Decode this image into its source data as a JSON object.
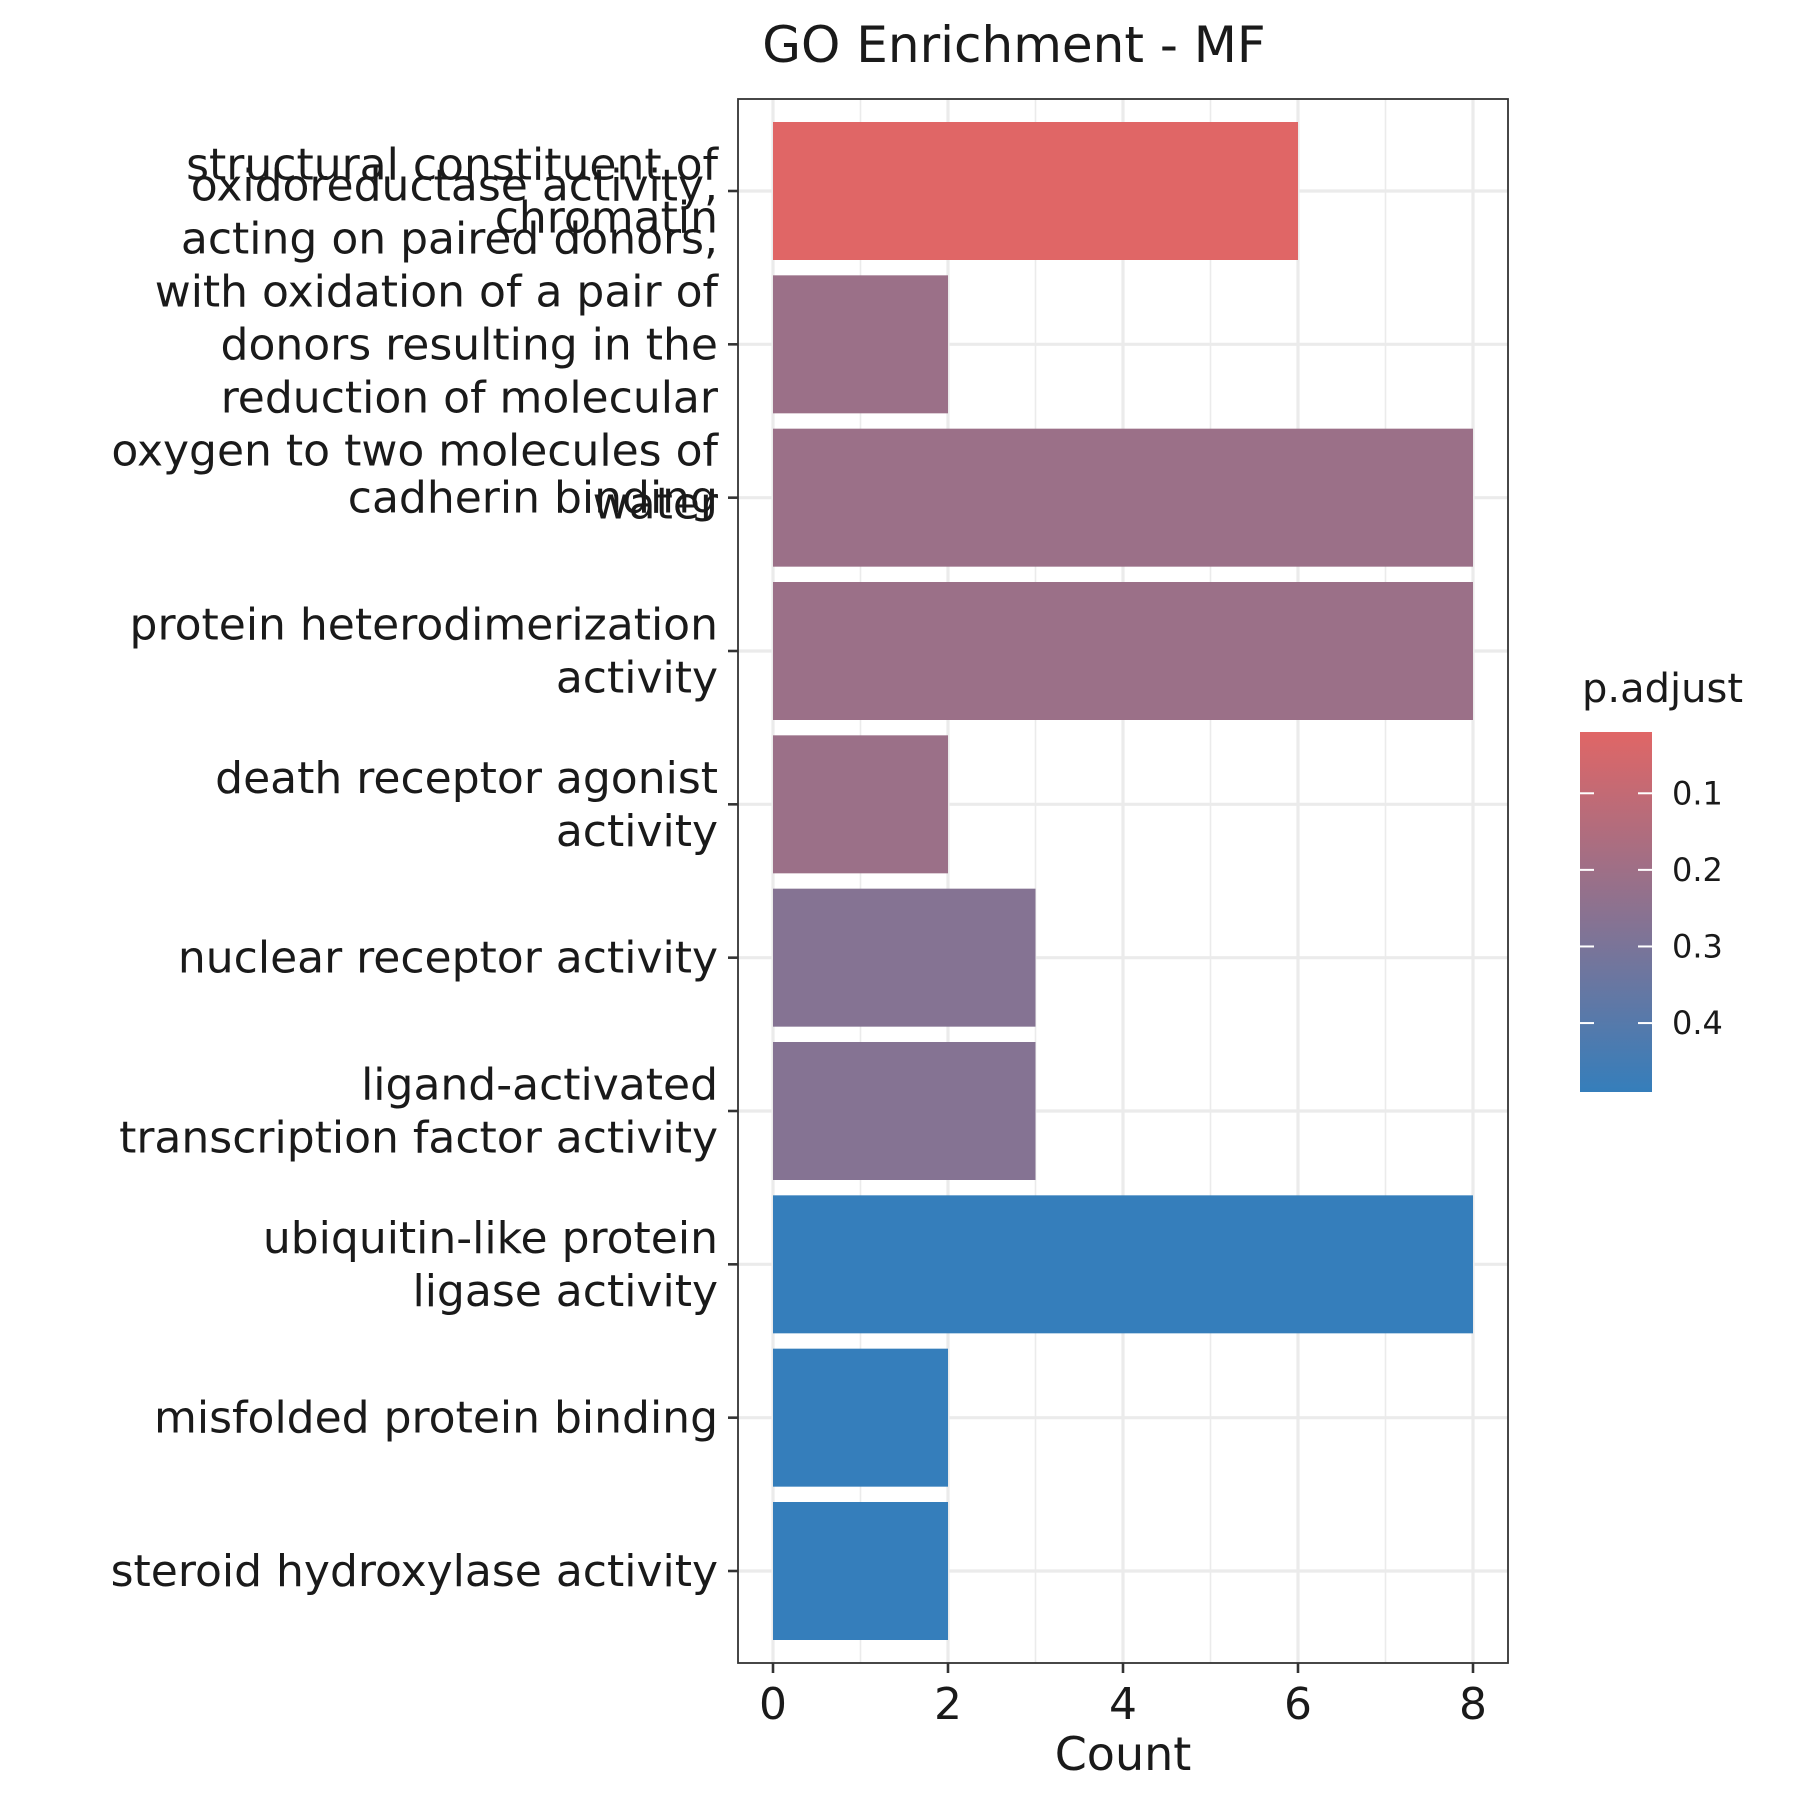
{
  "chart_data": {
    "type": "bar",
    "orientation": "horizontal",
    "title": "GO Enrichment - MF",
    "xlabel": "Count",
    "ylabel": "",
    "xlim": [
      -0.4,
      8.4
    ],
    "x_ticks": [
      0,
      2,
      4,
      6,
      8
    ],
    "grid": true,
    "categories": [
      "structural constituent of chromatin",
      "oxidoreductase activity, acting on paired donors, with oxidation of a pair of donors resulting in the reduction of molecular oxygen to two molecules of water",
      "cadherin binding",
      "protein heterodimerization activity",
      "death receptor agonist activity",
      "nuclear receptor activity",
      "ligand-activated transcription factor activity",
      "ubiquitin-like protein ligase activity",
      "misfolded protein binding",
      "steroid hydroxylase activity"
    ],
    "category_label_lines": [
      [
        "structural constituent of",
        "chromatin"
      ],
      [
        "oxidoreductase activity,",
        "acting on paired donors,",
        "with oxidation of a pair of",
        "donors resulting in the",
        "reduction of molecular",
        "oxygen to two molecules of",
        "water"
      ],
      [
        "cadherin binding"
      ],
      [
        "protein heterodimerization",
        "activity"
      ],
      [
        "death receptor agonist",
        "activity"
      ],
      [
        "nuclear receptor activity"
      ],
      [
        "ligand-activated",
        "transcription factor activity"
      ],
      [
        "ubiquitin-like protein",
        "ligase activity"
      ],
      [
        "misfolded protein binding"
      ],
      [
        "steroid hydroxylase activity"
      ]
    ],
    "values": [
      6,
      2,
      8,
      8,
      2,
      3,
      3,
      8,
      2,
      2
    ],
    "p_adjust": [
      0.02,
      0.21,
      0.21,
      0.21,
      0.21,
      0.27,
      0.27,
      0.49,
      0.49,
      0.49
    ],
    "legend": {
      "title": "p.adjust",
      "placement": "right",
      "ticks": [
        "0.1",
        "0.2",
        "0.3",
        "0.4"
      ],
      "range": [
        0.02,
        0.49
      ],
      "color_low": "#E06666",
      "color_high": "#357EBB"
    }
  }
}
